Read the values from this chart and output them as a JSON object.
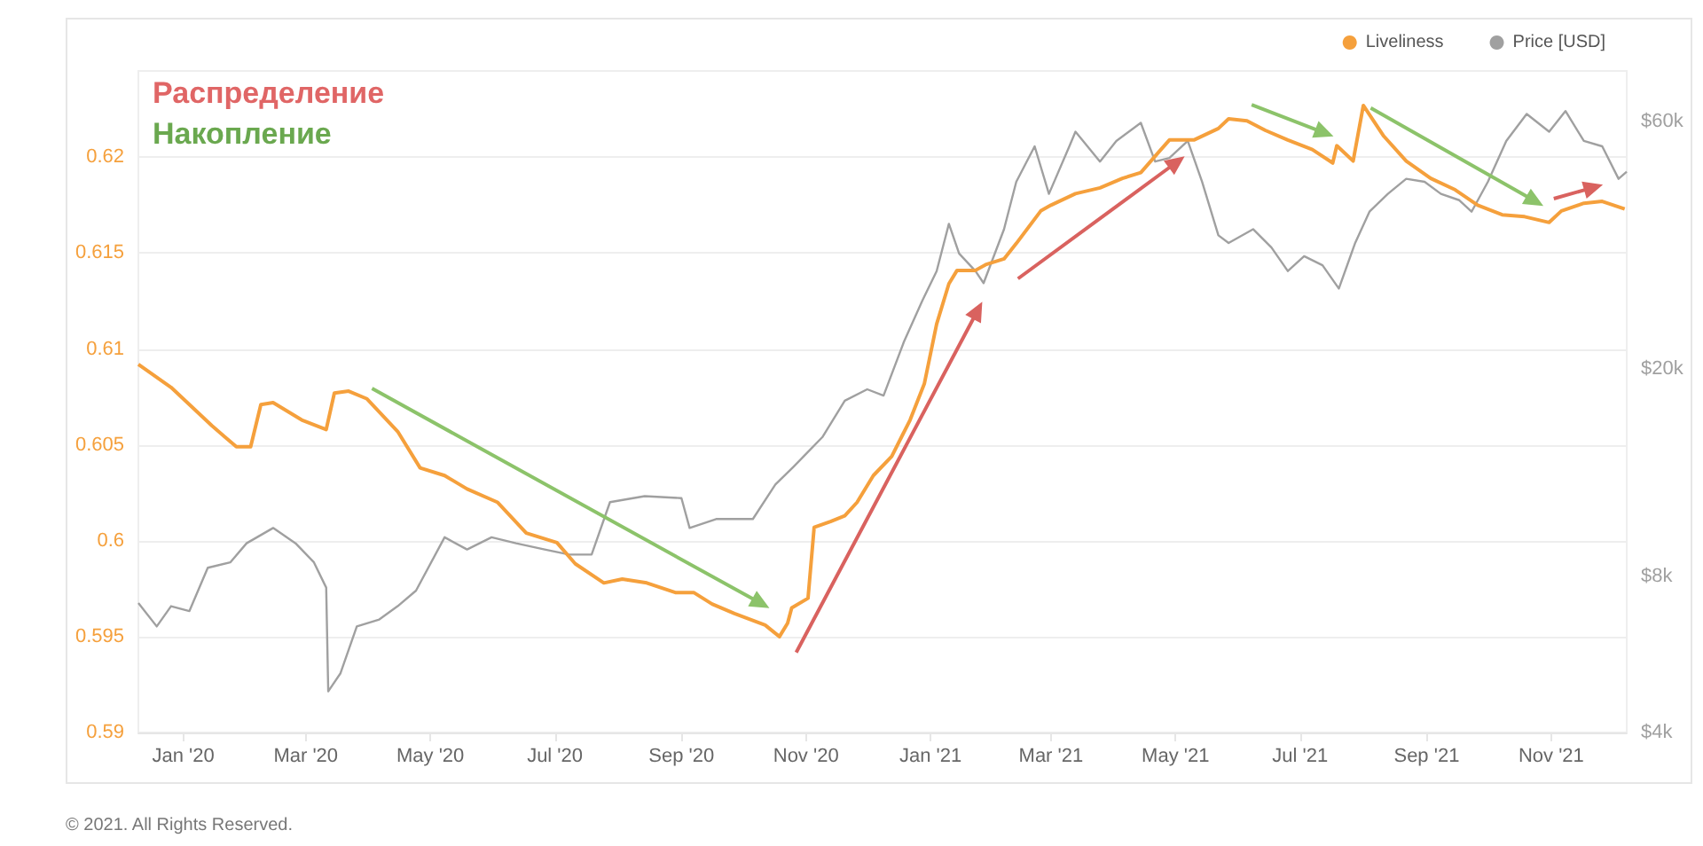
{
  "chart_data": {
    "type": "line",
    "annotations": [
      "Распределение",
      "Накопление",
      "© 2021. All Rights Reserved."
    ],
    "xlim": [
      "2019-12-10",
      "2021-12-08"
    ],
    "xticks": [
      {
        "value": "2020-01-01",
        "label": "Jan '20"
      },
      {
        "value": "2020-03-01",
        "label": "Mar '20"
      },
      {
        "value": "2020-05-01",
        "label": "May '20"
      },
      {
        "value": "2020-07-01",
        "label": "Jul '20"
      },
      {
        "value": "2020-09-01",
        "label": "Sep '20"
      },
      {
        "value": "2020-11-01",
        "label": "Nov '20"
      },
      {
        "value": "2021-01-01",
        "label": "Jan '21"
      },
      {
        "value": "2021-03-01",
        "label": "Mar '21"
      },
      {
        "value": "2021-05-01",
        "label": "May '21"
      },
      {
        "value": "2021-07-01",
        "label": "Jul '21"
      },
      {
        "value": "2021-09-01",
        "label": "Sep '21"
      },
      {
        "value": "2021-11-01",
        "label": "Nov '21"
      }
    ],
    "ylim": [
      0.59,
      0.6245
    ],
    "yticks": [
      0.59,
      0.595,
      0.6,
      0.605,
      0.61,
      0.615,
      0.62
    ],
    "y2lim": [
      4000,
      75000
    ],
    "y2ticks": [
      {
        "value": 4000,
        "label": "$4k"
      },
      {
        "value": 8000,
        "label": "$8k"
      },
      {
        "value": 20000,
        "label": "$20k"
      },
      {
        "value": 60000,
        "label": "$60k"
      }
    ],
    "log": "y2",
    "grid": "y",
    "legend": "top right",
    "marker": "none",
    "line_style": "solid",
    "series": [
      {
        "name": "Liveliness",
        "color": "#f5a03c",
        "x": [
          "2019-12-10",
          "2019-12-26",
          "2020-01-15",
          "2020-01-27",
          "2020-02-03",
          "2020-02-08",
          "2020-02-14",
          "2020-02-28",
          "2020-03-11",
          "2020-03-15",
          "2020-03-22",
          "2020-03-31",
          "2020-04-15",
          "2020-04-26",
          "2020-05-08",
          "2020-05-19",
          "2020-06-03",
          "2020-06-17",
          "2020-07-02",
          "2020-07-11",
          "2020-07-25",
          "2020-08-03",
          "2020-08-15",
          "2020-08-29",
          "2020-09-07",
          "2020-09-16",
          "2020-09-27",
          "2020-10-12",
          "2020-10-19",
          "2020-10-23",
          "2020-10-25",
          "2020-11-02",
          "2020-11-05",
          "2020-11-13",
          "2020-11-20",
          "2020-11-26",
          "2020-12-04",
          "2020-12-13",
          "2020-12-22",
          "2020-12-29",
          "2021-01-04",
          "2021-01-10",
          "2021-01-14",
          "2021-01-23",
          "2021-01-28",
          "2021-02-06",
          "2021-02-12",
          "2021-02-24",
          "2021-03-01",
          "2021-03-13",
          "2021-03-25",
          "2021-04-05",
          "2021-04-14",
          "2021-04-23",
          "2021-04-28",
          "2021-05-10",
          "2021-05-22",
          "2021-05-27",
          "2021-06-05",
          "2021-06-14",
          "2021-06-25",
          "2021-07-07",
          "2021-07-17",
          "2021-07-19",
          "2021-07-27",
          "2021-08-01",
          "2021-08-11",
          "2021-08-22",
          "2021-09-03",
          "2021-09-15",
          "2021-09-26",
          "2021-10-08",
          "2021-10-19",
          "2021-10-31",
          "2021-11-06",
          "2021-11-17",
          "2021-11-26",
          "2021-12-07"
        ],
        "values": [
          0.6092,
          0.608,
          0.606,
          0.6049,
          0.6049,
          0.6071,
          0.6072,
          0.6063,
          0.6058,
          0.6077,
          0.6078,
          0.6074,
          0.6057,
          0.6038,
          0.6034,
          0.6027,
          0.602,
          0.6004,
          0.5999,
          0.5988,
          0.5978,
          0.598,
          0.5978,
          0.5973,
          0.5973,
          0.5967,
          0.5962,
          0.5956,
          0.595,
          0.5957,
          0.5965,
          0.597,
          0.6007,
          0.601,
          0.6013,
          0.602,
          0.6034,
          0.6044,
          0.6063,
          0.6082,
          0.6113,
          0.6134,
          0.6141,
          0.6141,
          0.6144,
          0.6147,
          0.6155,
          0.6172,
          0.6175,
          0.6181,
          0.6184,
          0.6189,
          0.6192,
          0.6203,
          0.6209,
          0.6209,
          0.6215,
          0.622,
          0.6219,
          0.6214,
          0.6209,
          0.6204,
          0.6197,
          0.6206,
          0.6198,
          0.6227,
          0.6211,
          0.6198,
          0.6189,
          0.6183,
          0.6175,
          0.617,
          0.6169,
          0.6166,
          0.6172,
          0.6176,
          0.6177,
          0.6173
        ]
      },
      {
        "name": "Price [USD]",
        "color": "#a0a0a0",
        "axis": "y2",
        "x": [
          "2019-12-10",
          "2019-12-19",
          "2019-12-26",
          "2020-01-04",
          "2020-01-13",
          "2020-01-24",
          "2020-02-01",
          "2020-02-14",
          "2020-02-25",
          "2020-03-05",
          "2020-03-11",
          "2020-03-12",
          "2020-03-18",
          "2020-03-26",
          "2020-04-06",
          "2020-04-15",
          "2020-04-24",
          "2020-05-08",
          "2020-05-19",
          "2020-05-31",
          "2020-06-12",
          "2020-06-26",
          "2020-07-08",
          "2020-07-19",
          "2020-07-28",
          "2020-08-14",
          "2020-09-01",
          "2020-09-05",
          "2020-09-18",
          "2020-10-06",
          "2020-10-17",
          "2020-10-26",
          "2020-11-09",
          "2020-11-20",
          "2020-12-01",
          "2020-12-09",
          "2020-12-19",
          "2020-12-28",
          "2021-01-04",
          "2021-01-10",
          "2021-01-15",
          "2021-01-23",
          "2021-01-27",
          "2021-02-06",
          "2021-02-12",
          "2021-02-21",
          "2021-02-28",
          "2021-03-10",
          "2021-03-13",
          "2021-03-25",
          "2021-04-02",
          "2021-04-14",
          "2021-04-21",
          "2021-04-28",
          "2021-05-07",
          "2021-05-14",
          "2021-05-22",
          "2021-05-27",
          "2021-06-08",
          "2021-06-17",
          "2021-06-25",
          "2021-07-03",
          "2021-07-12",
          "2021-07-20",
          "2021-07-28",
          "2021-08-04",
          "2021-08-13",
          "2021-08-22",
          "2021-08-31",
          "2021-09-08",
          "2021-09-17",
          "2021-09-23",
          "2021-10-01",
          "2021-10-10",
          "2021-10-20",
          "2021-10-31",
          "2021-11-08",
          "2021-11-17",
          "2021-11-26",
          "2021-12-04",
          "2021-12-08"
        ],
        "values": [
          7100,
          6400,
          7000,
          6850,
          8300,
          8500,
          9250,
          9900,
          9250,
          8500,
          7600,
          4800,
          5200,
          6400,
          6600,
          7000,
          7500,
          9500,
          9000,
          9500,
          9250,
          9000,
          8800,
          8800,
          11100,
          11400,
          11300,
          9900,
          10300,
          10300,
          12000,
          13000,
          14800,
          17400,
          18300,
          17800,
          22600,
          27100,
          30900,
          38100,
          33400,
          30900,
          29300,
          37200,
          45900,
          53700,
          43500,
          53700,
          57300,
          50200,
          55000,
          59600,
          50200,
          51000,
          55000,
          45900,
          36200,
          35000,
          37200,
          34300,
          30900,
          33000,
          31700,
          28600,
          35000,
          40200,
          43500,
          46500,
          45900,
          43500,
          42300,
          40200,
          45900,
          55000,
          62000,
          57300,
          62800,
          55000,
          53700,
          46500,
          48000
        ]
      }
    ]
  }
}
